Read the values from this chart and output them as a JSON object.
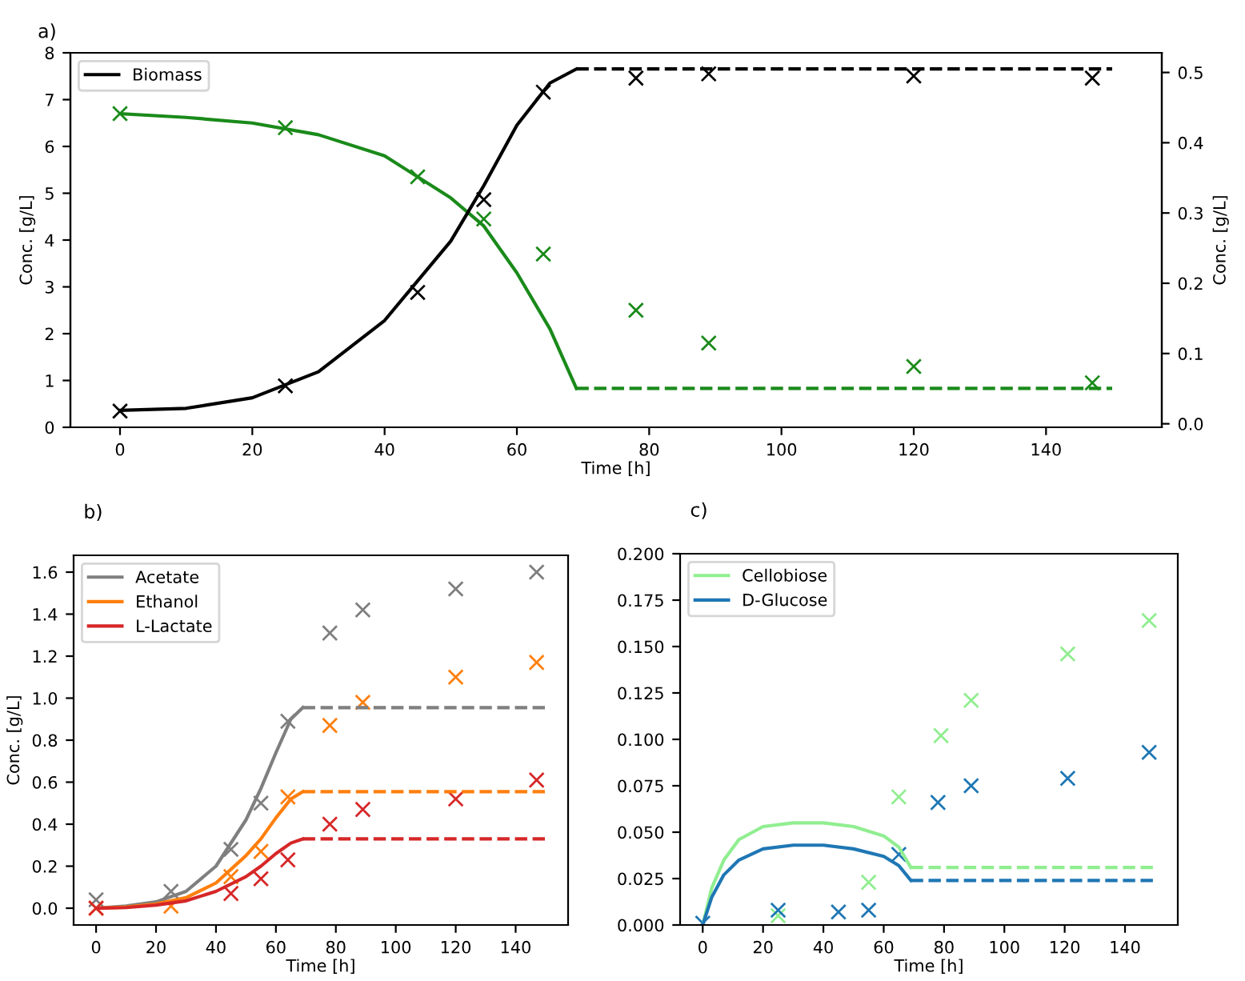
{
  "chart_data": [
    {
      "type": "line",
      "title": "a)",
      "xlabel": "Time [h]",
      "ylabel": "Conc. [g/L]",
      "y2label": "Conc. [g/L]",
      "xlim": [
        -7.5,
        157.5
      ],
      "xticks": [
        0,
        20,
        40,
        60,
        80,
        100,
        120,
        140
      ],
      "ylim": [
        0,
        8
      ],
      "yticks": [
        0,
        1,
        2,
        3,
        4,
        5,
        6,
        7,
        8
      ],
      "y2lim": [
        -0.005,
        0.528
      ],
      "y2ticks": [
        {
          "value": 0,
          "label": "0.0"
        },
        {
          "value": 0.1,
          "label": "0.1"
        },
        {
          "value": 0.2,
          "label": "0.2"
        },
        {
          "value": 0.3,
          "label": "0.3"
        },
        {
          "value": 0.4,
          "label": "0.4"
        },
        {
          "value": 0.5,
          "label": "0.5"
        }
      ],
      "legend": "top left",
      "grid": false,
      "series": [
        {
          "name": "Biomass",
          "type": "line",
          "axis": "y2",
          "color": "#000000",
          "line_style": "solid",
          "x": [
            0,
            10,
            20,
            30,
            40,
            50,
            55,
            60,
            65,
            69
          ],
          "values": [
            0.019,
            0.022,
            0.037,
            0.074,
            0.147,
            0.26,
            0.339,
            0.425,
            0.485,
            0.505
          ]
        },
        {
          "type": "line",
          "axis": "y2",
          "color": "#000000",
          "line_style": "dashed",
          "x": [
            69,
            150
          ],
          "values": [
            0.505,
            0.505
          ]
        },
        {
          "type": "scatter",
          "axis": "y2",
          "color": "#000000",
          "marker": "cross",
          "x": [
            0,
            25,
            45,
            55,
            64,
            78,
            89,
            120,
            147
          ],
          "values": [
            0.018,
            0.054,
            0.187,
            0.319,
            0.472,
            0.492,
            0.498,
            0.495,
            0.492
          ]
        },
        {
          "type": "line",
          "color": "#1a8a1a",
          "line_style": "solid",
          "x": [
            0,
            10,
            20,
            30,
            40,
            50,
            55,
            60,
            65,
            69
          ],
          "values": [
            6.7,
            6.62,
            6.5,
            6.25,
            5.8,
            4.9,
            4.3,
            3.3,
            2.1,
            0.83
          ]
        },
        {
          "type": "line",
          "color": "#1a8a1a",
          "line_style": "dashed",
          "x": [
            69,
            150
          ],
          "values": [
            0.83,
            0.83
          ]
        },
        {
          "type": "scatter",
          "color": "#1a8a1a",
          "marker": "cross",
          "x": [
            0,
            25,
            45,
            55,
            64,
            78,
            89,
            120,
            147
          ],
          "values": [
            6.7,
            6.4,
            5.35,
            4.45,
            3.7,
            2.5,
            1.8,
            1.3,
            0.95
          ]
        }
      ]
    },
    {
      "type": "line",
      "title": "b)",
      "xlabel": "Time [h]",
      "ylabel": "Conc. [g/L]",
      "xlim": [
        -7.5,
        157.5
      ],
      "xticks": [
        0,
        20,
        40,
        60,
        80,
        100,
        120,
        140
      ],
      "ylim": [
        -0.08,
        1.68
      ],
      "yticks": [
        {
          "value": 0,
          "label": "0.0"
        },
        {
          "value": 0.2,
          "label": "0.2"
        },
        {
          "value": 0.4,
          "label": "0.4"
        },
        {
          "value": 0.6,
          "label": "0.6"
        },
        {
          "value": 0.8,
          "label": "0.8"
        },
        {
          "value": 1.0,
          "label": "1.0"
        },
        {
          "value": 1.2,
          "label": "1.2"
        },
        {
          "value": 1.4,
          "label": "1.4"
        },
        {
          "value": 1.6,
          "label": "1.6"
        }
      ],
      "legend": "top left",
      "grid": false,
      "series": [
        {
          "name": "Acetate",
          "type": "line",
          "color": "#7f7f7f",
          "line_style": "solid",
          "x": [
            0,
            10,
            20,
            30,
            40,
            50,
            55,
            60,
            65,
            69
          ],
          "values": [
            0,
            0.01,
            0.03,
            0.08,
            0.2,
            0.42,
            0.57,
            0.74,
            0.9,
            0.955
          ]
        },
        {
          "name": "Ethanol",
          "type": "line",
          "color": "#ff7f0e",
          "line_style": "solid",
          "x": [
            0,
            10,
            20,
            30,
            40,
            50,
            55,
            60,
            65,
            69
          ],
          "values": [
            0,
            0.005,
            0.02,
            0.05,
            0.12,
            0.25,
            0.33,
            0.43,
            0.52,
            0.555
          ]
        },
        {
          "name": "L-Lactate",
          "type": "line",
          "color": "#d62728",
          "line_style": "solid",
          "x": [
            0,
            10,
            20,
            30,
            40,
            50,
            55,
            60,
            65,
            69
          ],
          "values": [
            0,
            0.003,
            0.015,
            0.035,
            0.08,
            0.15,
            0.2,
            0.26,
            0.31,
            0.33
          ]
        },
        {
          "type": "line",
          "color": "#7f7f7f",
          "line_style": "dashed",
          "x": [
            69,
            150
          ],
          "values": [
            0.955,
            0.955
          ]
        },
        {
          "type": "line",
          "color": "#ff7f0e",
          "line_style": "dashed",
          "x": [
            69,
            150
          ],
          "values": [
            0.555,
            0.555
          ]
        },
        {
          "type": "line",
          "color": "#d62728",
          "line_style": "dashed",
          "x": [
            69,
            150
          ],
          "values": [
            0.33,
            0.33
          ]
        },
        {
          "type": "scatter",
          "color": "#7f7f7f",
          "marker": "cross",
          "x": [
            0,
            25,
            45,
            55,
            64,
            78,
            89,
            120,
            147
          ],
          "values": [
            0.04,
            0.08,
            0.28,
            0.5,
            0.89,
            1.31,
            1.42,
            1.52,
            1.6
          ]
        },
        {
          "type": "scatter",
          "color": "#ff7f0e",
          "marker": "cross",
          "x": [
            0,
            25,
            45,
            55,
            64,
            78,
            89,
            120,
            147
          ],
          "values": [
            0.0,
            0.01,
            0.15,
            0.27,
            0.53,
            0.87,
            0.98,
            1.1,
            1.17
          ]
        },
        {
          "type": "scatter",
          "color": "#d62728",
          "marker": "cross",
          "x": [
            0,
            45,
            55,
            64,
            78,
            89,
            120,
            147
          ],
          "values": [
            0.0,
            0.07,
            0.14,
            0.23,
            0.4,
            0.47,
            0.52,
            0.61
          ]
        }
      ]
    },
    {
      "type": "line",
      "title": "c)",
      "xlabel": "Time [h]",
      "xlim": [
        -7.5,
        157.5
      ],
      "xticks": [
        0,
        20,
        40,
        60,
        80,
        100,
        120,
        140
      ],
      "ylim": [
        0,
        0.2
      ],
      "yticks": [
        {
          "value": 0,
          "label": "0.000"
        },
        {
          "value": 0.025,
          "label": "0.025"
        },
        {
          "value": 0.05,
          "label": "0.050"
        },
        {
          "value": 0.075,
          "label": "0.075"
        },
        {
          "value": 0.1,
          "label": "0.100"
        },
        {
          "value": 0.125,
          "label": "0.125"
        },
        {
          "value": 0.15,
          "label": "0.150"
        },
        {
          "value": 0.175,
          "label": "0.175"
        },
        {
          "value": 0.2,
          "label": "0.200"
        }
      ],
      "legend": "top left",
      "grid": false,
      "series": [
        {
          "name": "Cellobiose",
          "type": "line",
          "color": "#90ee90",
          "line_style": "solid",
          "x": [
            0,
            3,
            7,
            12,
            20,
            30,
            40,
            50,
            60,
            65,
            69
          ],
          "values": [
            0,
            0.02,
            0.035,
            0.046,
            0.053,
            0.055,
            0.055,
            0.053,
            0.048,
            0.042,
            0.031
          ]
        },
        {
          "name": "D-Glucose",
          "type": "line",
          "color": "#1f77b4",
          "line_style": "solid",
          "x": [
            0,
            3,
            7,
            12,
            20,
            30,
            40,
            50,
            60,
            65,
            69
          ],
          "values": [
            0,
            0.015,
            0.027,
            0.035,
            0.041,
            0.043,
            0.043,
            0.041,
            0.037,
            0.032,
            0.024
          ]
        },
        {
          "type": "line",
          "color": "#90ee90",
          "line_style": "dashed",
          "x": [
            69,
            150
          ],
          "values": [
            0.031,
            0.031
          ]
        },
        {
          "type": "line",
          "color": "#1f77b4",
          "line_style": "dashed",
          "x": [
            69,
            150
          ],
          "values": [
            0.024,
            0.024
          ]
        },
        {
          "type": "scatter",
          "color": "#90ee90",
          "marker": "cross",
          "x": [
            25,
            55,
            65,
            79,
            89,
            121,
            148
          ],
          "values": [
            0.005,
            0.023,
            0.069,
            0.102,
            0.121,
            0.146,
            0.164
          ]
        },
        {
          "type": "scatter",
          "color": "#1f77b4",
          "marker": "cross",
          "x": [
            0,
            25,
            45,
            55,
            65,
            78,
            89,
            121,
            148
          ],
          "values": [
            0.001,
            0.008,
            0.007,
            0.008,
            0.038,
            0.066,
            0.075,
            0.079,
            0.093
          ]
        }
      ]
    }
  ]
}
